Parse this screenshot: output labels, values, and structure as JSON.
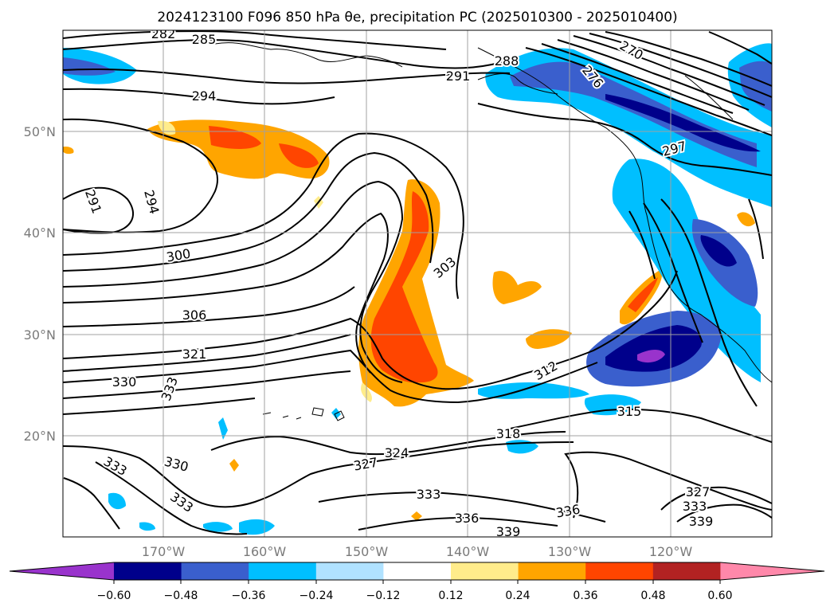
{
  "title": "2024123100 F096 850 hPa θe, precipitation PC (2025010300 - 2025010400)",
  "map": {
    "lon_ticks": [
      "170°W",
      "160°W",
      "150°W",
      "140°W",
      "130°W",
      "120°W"
    ],
    "lat_ticks": [
      "50°N",
      "40°N",
      "30°N",
      "20°N"
    ],
    "contour_labels": [
      "282",
      "285",
      "294",
      "291",
      "294",
      "291",
      "300",
      "306",
      "321",
      "330",
      "333",
      "333",
      "330",
      "333",
      "327",
      "324",
      "318",
      "303",
      "312",
      "315",
      "288",
      "276",
      "270",
      "297",
      "333",
      "336",
      "336",
      "339",
      "327",
      "333",
      "339"
    ]
  },
  "colorbar": {
    "ticks": [
      "−0.60",
      "−0.48",
      "−0.36",
      "−0.24",
      "−0.12",
      "0.12",
      "0.24",
      "0.36",
      "0.48",
      "0.60"
    ],
    "colors": [
      "#9933cc",
      "#00008b",
      "#3a5fcd",
      "#00bfff",
      "#b0e2ff",
      "#ffffff",
      "#ffec8b",
      "#ffa500",
      "#ff4500",
      "#b22222",
      "#ff88aa"
    ]
  }
}
